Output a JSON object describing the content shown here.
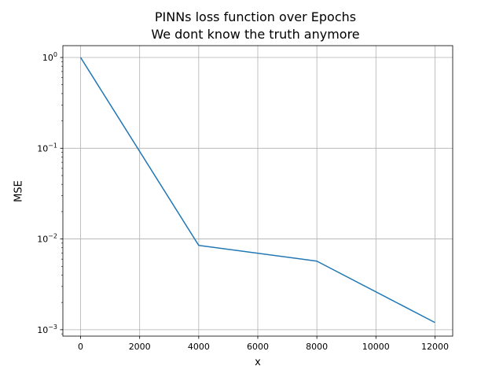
{
  "chart_data": {
    "type": "line",
    "title": "PINNs loss function over Epochs",
    "subtitle": "We dont know the truth anymore",
    "xlabel": "x",
    "ylabel": "MSE",
    "yscale": "log",
    "grid": true,
    "xlim": [
      -600,
      12600
    ],
    "ylim": [
      0.00085,
      1.35
    ],
    "xticks": [
      0,
      2000,
      4000,
      6000,
      8000,
      10000,
      12000
    ],
    "xtick_labels": [
      "0",
      "2000",
      "4000",
      "6000",
      "8000",
      "10000",
      "12000"
    ],
    "yticks": [
      0.001,
      0.01,
      0.1,
      1
    ],
    "ytick_labels": [
      {
        "base": "10",
        "exp": "−3"
      },
      {
        "base": "10",
        "exp": "−2"
      },
      {
        "base": "10",
        "exp": "−1"
      },
      {
        "base": "10",
        "exp": "0"
      }
    ],
    "series": [
      {
        "color": "#1f77b4",
        "x": [
          0,
          4000,
          8000,
          12000
        ],
        "y": [
          1.0,
          0.0085,
          0.0057,
          0.0012
        ]
      }
    ]
  }
}
